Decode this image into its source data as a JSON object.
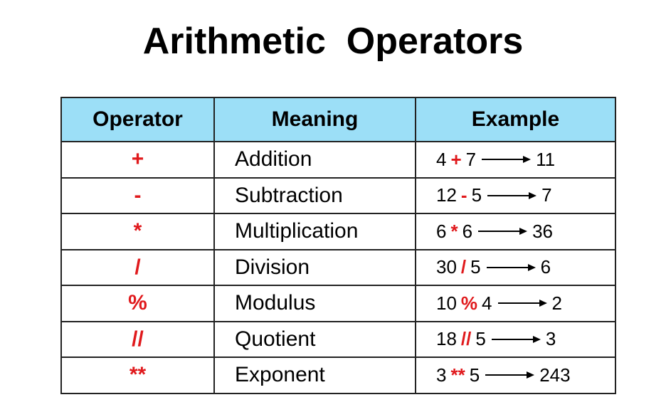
{
  "title": "Arithmetic  Operators",
  "table": {
    "headers": [
      "Operator",
      "Meaning",
      "Example"
    ],
    "rows": [
      {
        "operator": "+",
        "meaning": "Addition",
        "example": {
          "left": "4",
          "op": "+",
          "right": "7",
          "result": "11"
        }
      },
      {
        "operator": "-",
        "meaning": "Subtraction",
        "example": {
          "left": "12",
          "op": "-",
          "right": "5",
          "result": "7"
        }
      },
      {
        "operator": "*",
        "meaning": "Multiplication",
        "example": {
          "left": "6",
          "op": "*",
          "right": "6",
          "result": "36"
        }
      },
      {
        "operator": "/",
        "meaning": "Division",
        "example": {
          "left": "30",
          "op": "/",
          "right": "5",
          "result": "6"
        }
      },
      {
        "operator": "%",
        "meaning": "Modulus",
        "example": {
          "left": "10",
          "op": "%",
          "right": "4",
          "result": "2"
        }
      },
      {
        "operator": "//",
        "meaning": "Quotient",
        "example": {
          "left": "18",
          "op": "//",
          "right": "5",
          "result": "3"
        }
      },
      {
        "operator": "**",
        "meaning": "Exponent",
        "example": {
          "left": "3",
          "op": "**",
          "right": "5",
          "result": "243"
        }
      }
    ]
  }
}
